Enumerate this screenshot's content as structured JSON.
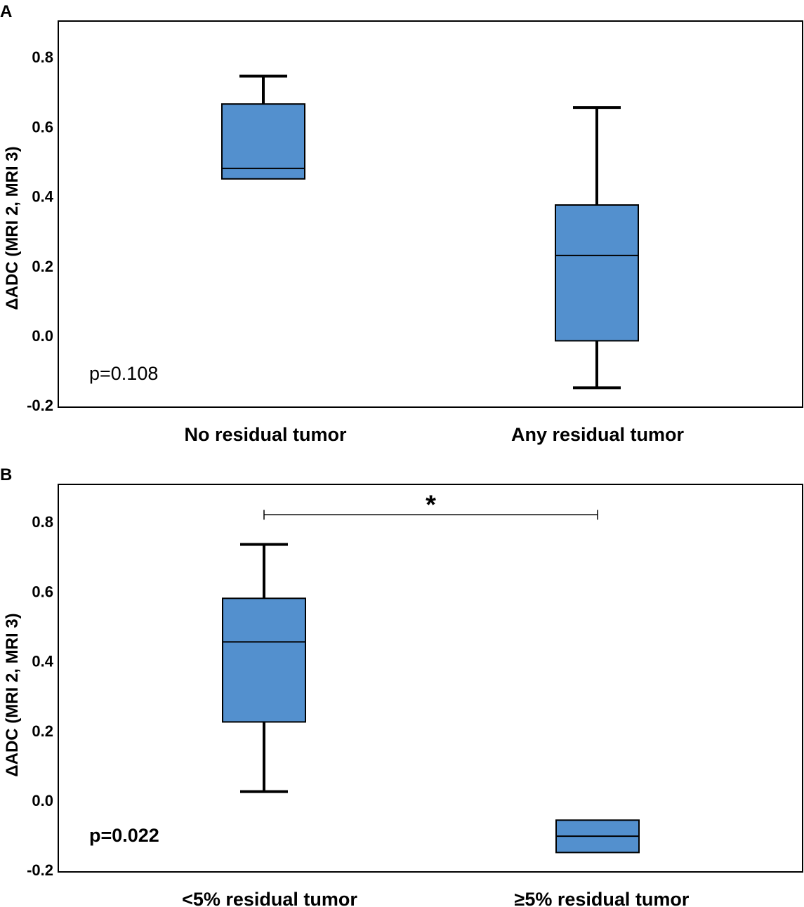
{
  "colors": {
    "box_fill": "#5390CE",
    "stroke": "#000000",
    "background": "#FFFFFF"
  },
  "chart_data": [
    {
      "panel": "A",
      "type": "box",
      "ylabel": "ΔADC (MRI 2, MRI 3)",
      "xlabel": "",
      "ylim": [
        -0.2,
        0.9
      ],
      "yticks": [
        0.8,
        0.6,
        0.4,
        0.2,
        0.0,
        -0.2
      ],
      "ytick_labels": [
        "0.8",
        "0.6",
        "0.4",
        "0.2",
        "0.0",
        "-0.2"
      ],
      "categories": [
        "No residual tumor",
        "Any residual tumor"
      ],
      "boxes": [
        {
          "min": 0.45,
          "q1": 0.45,
          "median": 0.48,
          "q3": 0.665,
          "max": 0.745
        },
        {
          "min": -0.15,
          "q1": -0.015,
          "median": 0.23,
          "q3": 0.375,
          "max": 0.655
        }
      ],
      "annotation": {
        "text": "p=0.108",
        "bold": false
      },
      "significance": null
    },
    {
      "panel": "B",
      "type": "box",
      "ylabel": "ΔADC (MRI 2, MRI 3)",
      "xlabel": "",
      "ylim": [
        -0.2,
        0.9
      ],
      "yticks": [
        0.8,
        0.6,
        0.4,
        0.2,
        0.0,
        -0.2
      ],
      "ytick_labels": [
        "0.8",
        "0.6",
        "0.4",
        "0.2",
        "0.0",
        "-0.2"
      ],
      "categories": [
        "<5% residual tumor",
        "≥5% residual tumor"
      ],
      "boxes": [
        {
          "min": 0.025,
          "q1": 0.225,
          "median": 0.455,
          "q3": 0.58,
          "max": 0.735
        },
        {
          "min": -0.15,
          "q1": -0.15,
          "median": -0.103,
          "q3": -0.057,
          "max": -0.057
        }
      ],
      "annotation": {
        "text": "p=0.022",
        "bold": true
      },
      "significance": {
        "from": 0,
        "to": 1,
        "y": 0.82,
        "label": "*"
      }
    }
  ]
}
